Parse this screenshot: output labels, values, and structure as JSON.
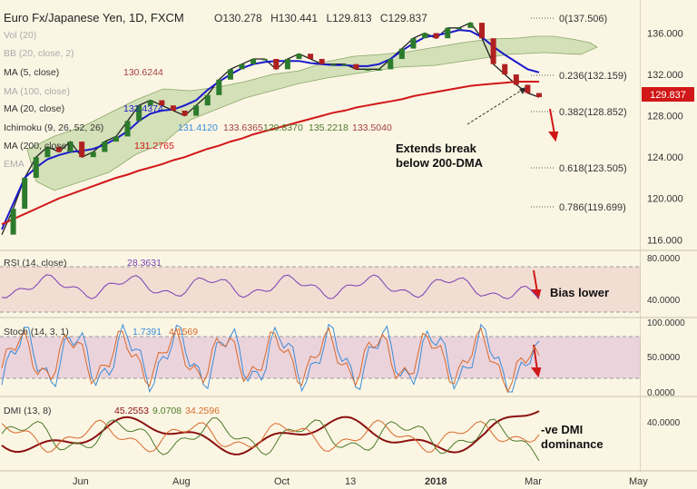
{
  "header": {
    "title": "Euro Fx/Japanese Yen, 1D, FXCM",
    "ohlc": {
      "o": "O130.278",
      "h": "H130.441",
      "l": "L129.813",
      "c": "C129.837"
    }
  },
  "indicators": {
    "vol": "Vol (20)",
    "bb": "BB (20, close, 2)",
    "ma5": {
      "label": "MA (5, close)",
      "value": "130.6244"
    },
    "ma100": "MA (100, close)",
    "ma20": {
      "label": "MA (20, close)",
      "value": "132.4374"
    },
    "ichimoku": {
      "label": "Ichimoku (9, 26, 52, 26)",
      "values": [
        "131.4120",
        "133.6365",
        "129.8370",
        "135.2218",
        "133.5040"
      ]
    },
    "ma200": {
      "label": "MA (200, close)",
      "value": "131.2765"
    },
    "ema": "EMA"
  },
  "fib_levels": [
    {
      "label": "0(137.506)",
      "value": 137.506
    },
    {
      "label": "0.236(132.159)",
      "value": 132.159
    },
    {
      "label": "0.382(128.852)",
      "value": 128.852
    },
    {
      "label": "0.618(123.505)",
      "value": 123.505
    },
    {
      "label": "0.786(119.699)",
      "value": 119.699
    }
  ],
  "annotations": {
    "main": [
      "Extends break",
      "below 200-DMA"
    ],
    "rsi": "Bias lower",
    "dmi": [
      "-ve DMI",
      "dominance"
    ]
  },
  "price_tag": "129.837",
  "subpanels": {
    "rsi": {
      "label": "RSI (14, close)",
      "value": "28.3631",
      "ticks": [
        "80.0000",
        "40.0000"
      ]
    },
    "stoch": {
      "label": "Stoch (14, 3, 1)",
      "values": [
        "1.7391",
        "4.1569"
      ],
      "ticks": [
        "100.0000",
        "50.0000",
        "0.0000"
      ]
    },
    "dmi": {
      "label": "DMI (13, 8)",
      "values": [
        "45.2553",
        "9.0708",
        "34.2596"
      ],
      "ticks": [
        "40.0000"
      ]
    }
  },
  "chart_data": {
    "type": "line",
    "title": "Euro Fx/Japanese Yen, 1D, FXCM",
    "x_ticks": [
      "Jun",
      "Aug",
      "Oct",
      "13",
      "2018",
      "Mar",
      "May"
    ],
    "y_ticks": [
      136,
      132,
      128,
      124,
      120,
      116
    ],
    "y_tick_labels": [
      "136.000",
      "132.000",
      "128.000",
      "124.000",
      "120.000",
      "116.000"
    ],
    "ylim": [
      115.5,
      138.5
    ],
    "series": [
      {
        "name": "Euro Fx/Japanese Yen",
        "values": [
          116.5,
          119,
          122,
          124,
          125,
          124.5,
          125.5,
          124,
          124.5,
          125.5,
          126,
          127.5,
          129,
          129.5,
          129,
          128.5,
          128,
          129,
          130,
          131.5,
          132.5,
          133,
          133.5,
          133.5,
          132.5,
          133.5,
          134,
          133.5,
          133,
          133,
          133,
          132.5,
          132.5,
          132.5,
          133.5,
          134.5,
          135.5,
          136,
          135.5,
          136.5,
          136.5,
          137,
          135.5,
          133,
          132,
          131,
          130.2,
          129.8
        ]
      },
      {
        "values": [
          117,
          119.5,
          122,
          123,
          123.8,
          124.2,
          124.5,
          124.6,
          124.8,
          125.2,
          125.8,
          126.5,
          127.5,
          128.2,
          128.5,
          128.6,
          129,
          129.5,
          130.5,
          131.3,
          132,
          132.6,
          133,
          133.2,
          133.3,
          133.3,
          133.3,
          133.1,
          133,
          132.9,
          132.9,
          132.8,
          132.8,
          133,
          133.5,
          134.3,
          135,
          135.6,
          135.8,
          136,
          136.3,
          136.2,
          135.6,
          134.7,
          133.9,
          133.2,
          132.5,
          132.2
        ]
      },
      {
        "values": [
          117.5,
          118,
          118.5,
          119,
          119.5,
          120,
          120.4,
          120.8,
          121.2,
          121.6,
          122,
          122.3,
          122.7,
          123,
          123.3,
          123.7,
          124,
          124.4,
          124.8,
          125.1,
          125.5,
          125.8,
          126.2,
          126.5,
          126.8,
          127.1,
          127.4,
          127.7,
          128,
          128.3,
          128.5,
          128.8,
          129,
          129.2,
          129.4,
          129.6,
          129.9,
          130.1,
          130.3,
          130.5,
          130.7,
          130.9,
          131,
          131.1,
          131.2,
          131.3,
          131.3,
          131.3
        ]
      }
    ]
  }
}
